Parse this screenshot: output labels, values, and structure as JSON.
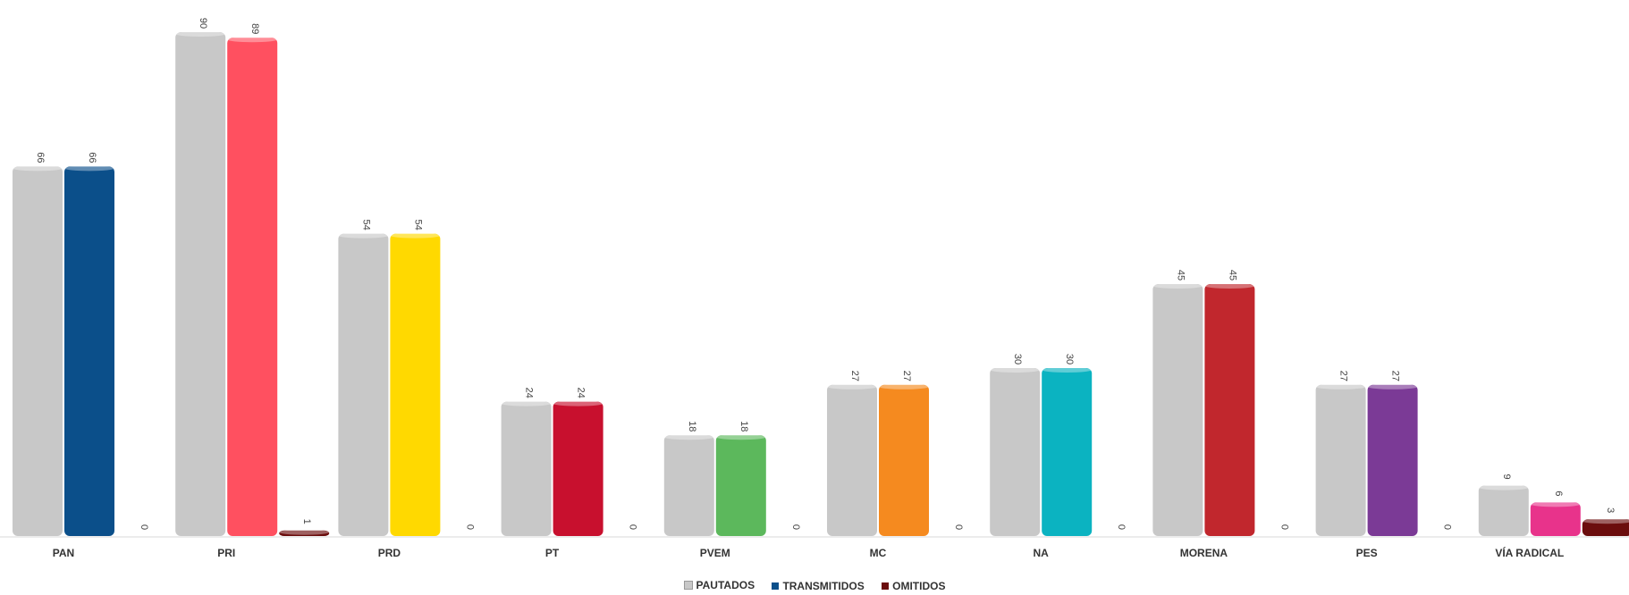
{
  "chart_data": {
    "type": "bar",
    "categories": [
      "PAN",
      "PRI",
      "PRD",
      "PT",
      "PVEM",
      "MC",
      "NA",
      "MORENA",
      "PES",
      "VÍA RADICAL"
    ],
    "series": [
      {
        "name": "PAUTADOS",
        "values": [
          66,
          90,
          54,
          24,
          18,
          27,
          30,
          45,
          27,
          9
        ],
        "color": "#c8c8c8"
      },
      {
        "name": "TRANSMITIDOS",
        "values": [
          66,
          89,
          54,
          24,
          18,
          27,
          30,
          45,
          27,
          6
        ],
        "color": "#0b4f8a"
      },
      {
        "name": "OMITIDOS",
        "values": [
          0,
          1,
          0,
          0,
          0,
          0,
          0,
          0,
          0,
          3
        ],
        "color": "#6b0d0d"
      }
    ],
    "transmitidos_colors": [
      "#0b4f8a",
      "#ff5060",
      "#ffd900",
      "#c8102e",
      "#5cb85c",
      "#f58a1f",
      "#0bb3c1",
      "#c1272d",
      "#7b3a96",
      "#e8338b"
    ],
    "ylim": [
      0,
      90
    ],
    "legend_position": "bottom",
    "grid": false
  }
}
